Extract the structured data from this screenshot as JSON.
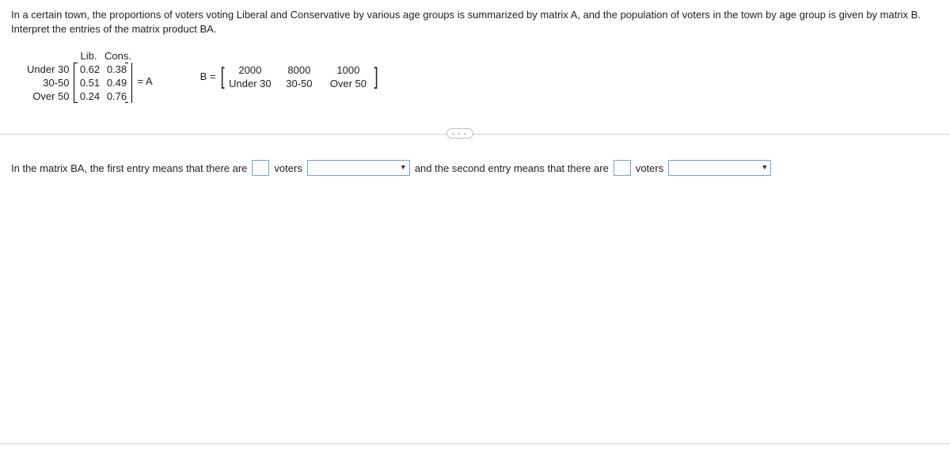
{
  "problem": "In a certain town, the proportions of voters voting Liberal and Conservative by various age groups is summarized by matrix A, and the population of voters in the town by age group is given by matrix B. Interpret the entries of the matrix product BA.",
  "matrixA": {
    "col_labels": [
      "Lib.",
      "Cons."
    ],
    "row_labels": [
      "Under 30",
      "30-50",
      "Over 50"
    ],
    "values": [
      [
        "0.62",
        "0.38"
      ],
      [
        "0.51",
        "0.49"
      ],
      [
        "0.24",
        "0.76"
      ]
    ],
    "suffix": "= A"
  },
  "matrixB": {
    "prefix": "B =",
    "values": [
      "2000",
      "8000",
      "1000"
    ],
    "col_labels": [
      "Under 30",
      "30-50",
      "Over 50"
    ]
  },
  "answer": {
    "part1_pre": "In the matrix BA, the first entry means that there are",
    "voters_word": "voters",
    "part2_pre": "and the second entry means that there are"
  },
  "ellipsis": "● ● ●"
}
